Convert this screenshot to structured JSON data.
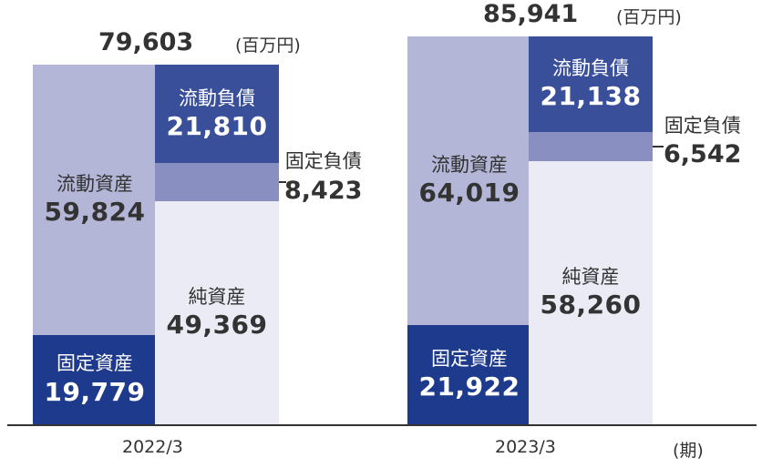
{
  "unit_label": "(百万円)",
  "period_label": "(期)",
  "chart_data": {
    "type": "bar",
    "subtype": "stacked balance sheet (assets vs. liabilities & net assets)",
    "categories": [
      "2022/3",
      "2023/3"
    ],
    "unit": "百万円",
    "periods": [
      {
        "period": "2022/3",
        "total": "79,603",
        "assets": [
          {
            "name": "固定資産",
            "value": 19779,
            "display": "19,779",
            "color": "#1d3a8c"
          },
          {
            "name": "流動資産",
            "value": 59824,
            "display": "59,824",
            "color": "#b3b6d6"
          }
        ],
        "liabilities_equity": [
          {
            "name": "純資産",
            "value": 49369,
            "display": "49,369",
            "color": "#eaebf5"
          },
          {
            "name": "固定負債",
            "value": 8423,
            "display": "8,423",
            "color": "#8a8fc2"
          },
          {
            "name": "流動負債",
            "value": 21810,
            "display": "21,810",
            "color": "#3a4f9a"
          }
        ]
      },
      {
        "period": "2023/3",
        "total": "85,941",
        "assets": [
          {
            "name": "固定資産",
            "value": 21922,
            "display": "21,922",
            "color": "#1d3a8c"
          },
          {
            "name": "流動資産",
            "value": 64019,
            "display": "64,019",
            "color": "#b3b6d6"
          }
        ],
        "liabilities_equity": [
          {
            "name": "純資産",
            "value": 58260,
            "display": "58,260",
            "color": "#eaebf5"
          },
          {
            "name": "固定負債",
            "value": 6542,
            "display": "6,542",
            "color": "#8a8fc2"
          },
          {
            "name": "流動負債",
            "value": 21138,
            "display": "21,138",
            "color": "#3a4f9a"
          }
        ]
      }
    ]
  }
}
